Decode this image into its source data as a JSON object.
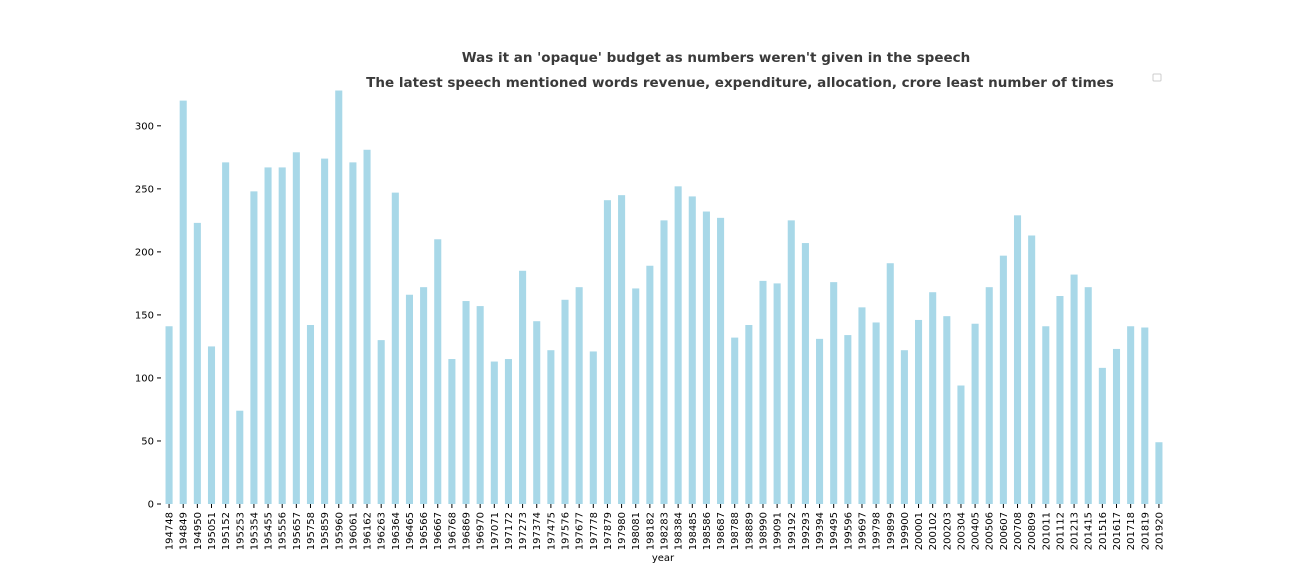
{
  "chart_data": {
    "type": "bar",
    "title": "Was it an 'opaque' budget as numbers weren't given in the speech",
    "subtitle": "The latest speech mentioned words revenue, expenditure, allocation, crore least number of times",
    "xlabel": "year",
    "ylabel": "",
    "ylim": [
      0,
      330
    ],
    "yticks": [
      0,
      50,
      100,
      150,
      200,
      250,
      300
    ],
    "bar_color": "#a8d8e8",
    "grid": false,
    "legend": "top-right",
    "categories": [
      "194748",
      "194849",
      "194950",
      "195051",
      "195152",
      "195253",
      "195354",
      "195455",
      "195556",
      "195657",
      "195758",
      "195859",
      "195960",
      "196061",
      "196162",
      "196263",
      "196364",
      "196465",
      "196566",
      "196667",
      "196768",
      "196869",
      "196970",
      "197071",
      "197172",
      "197273",
      "197374",
      "197475",
      "197576",
      "197677",
      "197778",
      "197879",
      "197980",
      "198081",
      "198182",
      "198283",
      "198384",
      "198485",
      "198586",
      "198687",
      "198788",
      "198889",
      "198990",
      "199091",
      "199192",
      "199293",
      "199394",
      "199495",
      "199596",
      "199697",
      "199798",
      "199899",
      "199900",
      "200001",
      "200102",
      "200203",
      "200304",
      "200405",
      "200506",
      "200607",
      "200708",
      "200809",
      "201011",
      "201112",
      "201213",
      "201415",
      "201516",
      "201617",
      "201718",
      "201819",
      "201920"
    ],
    "values": [
      141,
      320,
      223,
      125,
      271,
      74,
      248,
      267,
      267,
      279,
      142,
      274,
      328,
      271,
      281,
      130,
      247,
      166,
      172,
      210,
      115,
      161,
      157,
      113,
      115,
      185,
      145,
      122,
      162,
      172,
      121,
      241,
      245,
      171,
      189,
      225,
      252,
      244,
      232,
      227,
      132,
      142,
      177,
      175,
      225,
      207,
      131,
      176,
      134,
      156,
      144,
      191,
      122,
      146,
      168,
      149,
      94,
      143,
      172,
      197,
      229,
      213,
      141,
      165,
      182,
      172,
      108,
      123,
      141,
      140,
      49
    ]
  }
}
